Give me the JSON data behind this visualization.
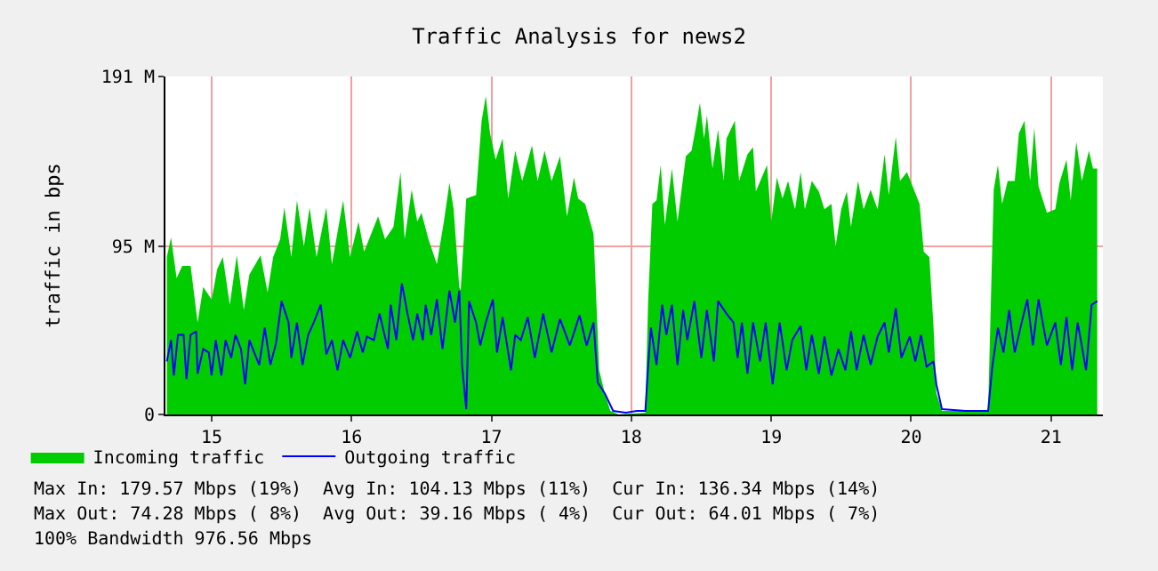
{
  "chart_data": {
    "type": "area",
    "title": "Traffic Analysis for news2",
    "ylabel": "traffic in bps",
    "xlim": [
      14.67,
      21.37
    ],
    "xticks": [
      15,
      16,
      17,
      18,
      19,
      20,
      21
    ],
    "ylim": [
      0,
      191
    ],
    "yticks": [
      0,
      {
        "value": 95,
        "label": "95 M"
      },
      {
        "value": 191,
        "label": "191 M"
      }
    ],
    "grid": true,
    "legend": "bottom left",
    "series": [
      {
        "name": "Incoming traffic",
        "color": "#00cc00",
        "x": [
          14.68,
          14.71,
          14.75,
          14.79,
          14.85,
          14.9,
          14.94,
          15.0,
          15.04,
          15.08,
          15.13,
          15.18,
          15.23,
          15.27,
          15.35,
          15.4,
          15.44,
          15.49,
          15.52,
          15.57,
          15.61,
          15.66,
          15.7,
          15.75,
          15.82,
          15.86,
          15.94,
          15.99,
          16.05,
          16.09,
          16.19,
          16.24,
          16.3,
          16.35,
          16.38,
          16.43,
          16.47,
          16.5,
          16.55,
          16.61,
          16.66,
          16.7,
          16.73,
          16.77,
          16.78,
          16.82,
          16.89,
          16.93,
          16.96,
          16.99,
          17.03,
          17.08,
          17.12,
          17.17,
          17.22,
          17.29,
          17.33,
          17.38,
          17.43,
          17.49,
          17.54,
          17.59,
          17.62,
          17.67,
          17.73,
          17.77,
          17.81,
          17.85,
          17.91,
          18.1,
          18.12,
          18.15,
          18.18,
          18.21,
          18.24,
          18.29,
          18.33,
          18.39,
          18.43,
          18.46,
          18.49,
          18.52,
          18.54,
          18.58,
          18.62,
          18.66,
          18.68,
          18.74,
          18.77,
          18.83,
          18.87,
          18.89,
          18.97,
          19.0,
          19.04,
          19.08,
          19.12,
          19.17,
          19.21,
          19.24,
          19.29,
          19.34,
          19.38,
          19.43,
          19.46,
          19.5,
          19.54,
          19.57,
          19.62,
          19.66,
          19.71,
          19.76,
          19.81,
          19.84,
          19.89,
          19.92,
          19.97,
          20.01,
          20.06,
          20.09,
          20.13,
          20.16,
          20.18,
          20.22,
          20.39,
          20.55,
          20.56,
          20.59,
          20.62,
          20.65,
          20.69,
          20.74,
          20.77,
          20.81,
          20.85,
          20.88,
          20.91,
          20.97,
          21.03,
          21.06,
          21.11,
          21.14,
          21.18,
          21.22,
          21.27,
          21.3,
          21.33
        ],
        "values": [
          89,
          100,
          77,
          84,
          84,
          52,
          72,
          65,
          82,
          89,
          62,
          90,
          59,
          79,
          90,
          69,
          89,
          99,
          117,
          89,
          121,
          95,
          117,
          89,
          117,
          85,
          121,
          89,
          109,
          92,
          112,
          99,
          106,
          137,
          99,
          127,
          109,
          114,
          99,
          85,
          109,
          131,
          116,
          72,
          70,
          122,
          124,
          166,
          180,
          159,
          144,
          156,
          122,
          149,
          132,
          152,
          132,
          149,
          132,
          146,
          112,
          134,
          122,
          119,
          102,
          25,
          12,
          2,
          0,
          1,
          64,
          119,
          121,
          141,
          107,
          139,
          109,
          146,
          149,
          162,
          176,
          156,
          169,
          139,
          161,
          132,
          156,
          166,
          132,
          147,
          151,
          126,
          141,
          109,
          134,
          122,
          132,
          116,
          137,
          116,
          132,
          126,
          116,
          119,
          95,
          116,
          126,
          106,
          132,
          116,
          127,
          116,
          147,
          124,
          157,
          132,
          137,
          129,
          119,
          92,
          89,
          49,
          12,
          2,
          2,
          2,
          34,
          127,
          141,
          119,
          132,
          132,
          159,
          166,
          132,
          162,
          129,
          114,
          116,
          131,
          144,
          121,
          154,
          132,
          149,
          139,
          139
        ]
      },
      {
        "name": "Outgoing traffic",
        "type": "line",
        "color": "#0000ff",
        "x": [
          14.68,
          14.71,
          14.73,
          14.76,
          14.8,
          14.82,
          14.85,
          14.89,
          14.9,
          14.94,
          14.98,
          15.0,
          15.03,
          15.07,
          15.1,
          15.14,
          15.17,
          15.21,
          15.24,
          15.27,
          15.34,
          15.38,
          15.42,
          15.46,
          15.5,
          15.55,
          15.57,
          15.61,
          15.65,
          15.69,
          15.73,
          15.78,
          15.82,
          15.86,
          15.9,
          15.94,
          15.99,
          16.04,
          16.08,
          16.11,
          16.16,
          16.2,
          16.26,
          16.28,
          16.32,
          16.36,
          16.4,
          16.44,
          16.47,
          16.51,
          16.53,
          16.57,
          16.61,
          16.65,
          16.7,
          16.74,
          16.77,
          16.79,
          16.82,
          16.84,
          16.89,
          16.92,
          16.96,
          17.01,
          17.04,
          17.08,
          17.14,
          17.17,
          17.21,
          17.26,
          17.31,
          17.37,
          17.43,
          17.49,
          17.56,
          17.63,
          17.68,
          17.73,
          17.76,
          17.81,
          17.87,
          17.96,
          18.04,
          18.1,
          18.12,
          18.14,
          18.18,
          18.22,
          18.25,
          18.29,
          18.33,
          18.37,
          18.4,
          18.45,
          18.5,
          18.54,
          18.59,
          18.62,
          18.68,
          18.73,
          18.76,
          18.79,
          18.83,
          18.87,
          18.92,
          18.96,
          19.01,
          19.06,
          19.11,
          19.15,
          19.21,
          19.25,
          19.29,
          19.34,
          19.38,
          19.43,
          19.48,
          19.53,
          19.57,
          19.61,
          19.66,
          19.71,
          19.76,
          19.81,
          19.84,
          19.89,
          19.93,
          19.99,
          20.03,
          20.07,
          20.11,
          20.16,
          20.18,
          20.22,
          20.39,
          20.55,
          20.58,
          20.62,
          20.66,
          20.7,
          20.74,
          20.79,
          20.83,
          20.87,
          20.91,
          20.97,
          21.03,
          21.07,
          21.11,
          21.15,
          21.19,
          21.25,
          21.29,
          21.33
        ],
        "values": [
          30,
          42,
          22,
          45,
          45,
          20,
          45,
          47,
          23,
          37,
          35,
          22,
          42,
          22,
          42,
          32,
          45,
          37,
          17,
          42,
          28,
          49,
          28,
          40,
          64,
          52,
          32,
          52,
          28,
          45,
          52,
          62,
          34,
          42,
          25,
          42,
          32,
          47,
          35,
          44,
          42,
          57,
          37,
          62,
          42,
          74,
          57,
          42,
          57,
          42,
          62,
          45,
          65,
          37,
          70,
          52,
          70,
          28,
          3,
          64,
          52,
          39,
          52,
          65,
          35,
          55,
          25,
          45,
          42,
          55,
          32,
          57,
          35,
          54,
          39,
          56,
          39,
          52,
          18,
          12,
          2,
          1,
          2,
          2,
          27,
          49,
          28,
          62,
          45,
          62,
          28,
          59,
          42,
          64,
          32,
          59,
          30,
          64,
          57,
          52,
          32,
          52,
          23,
          52,
          30,
          52,
          17,
          52,
          25,
          42,
          50,
          25,
          45,
          23,
          44,
          22,
          37,
          25,
          47,
          25,
          45,
          28,
          44,
          52,
          35,
          60,
          32,
          44,
          30,
          45,
          27,
          30,
          17,
          3,
          2,
          2,
          27,
          49,
          35,
          59,
          35,
          52,
          65,
          39,
          65,
          39,
          52,
          28,
          55,
          25,
          52,
          25,
          62,
          64
        ]
      }
    ],
    "annotations": [
      "Max In: 179.57 Mbps (19%)  Avg In: 104.13 Mbps (11%)  Cur In: 136.34 Mbps (14%)",
      "Max Out: 74.28 Mbps ( 8%)  Avg Out: 39.16 Mbps ( 4%)  Cur Out: 64.01 Mbps ( 7%)",
      "100% Bandwidth 976.56 Mbps"
    ]
  }
}
